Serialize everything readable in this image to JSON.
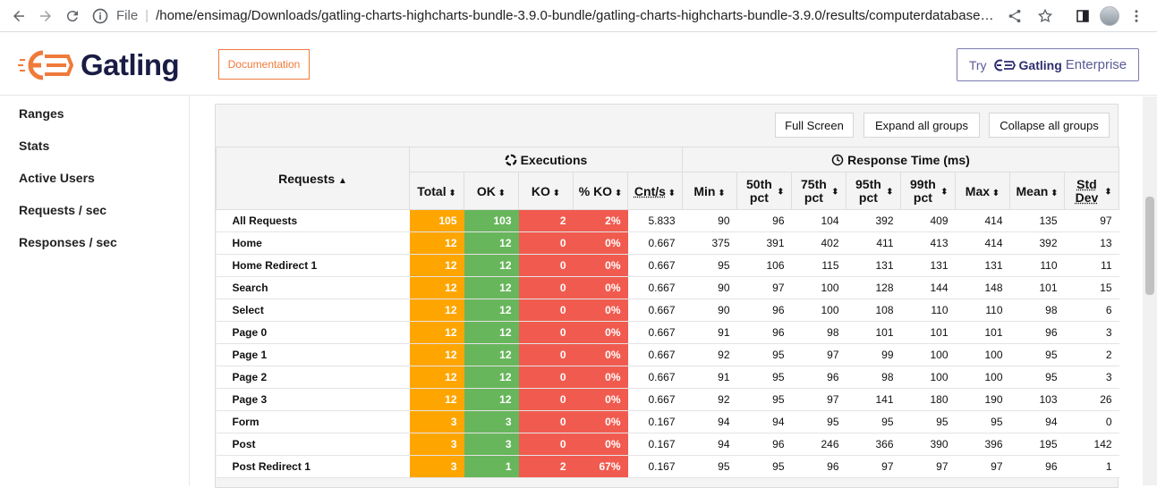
{
  "browser": {
    "file_label": "File",
    "url": "/home/ensimag/Downloads/gatling-charts-highcharts-bundle-3.9.0-bundle/gatling-charts-highcharts-bundle-3.9.0/results/computerdatabasesimul…"
  },
  "header": {
    "logo_text": "Gatling",
    "doc_label": "Documentation",
    "ent_try": "Try",
    "ent_brand": "Gatling",
    "ent_product": "Enterprise",
    "accent": "#f07a3a"
  },
  "sidebar": {
    "items": [
      "Ranges",
      "Stats",
      "Active Users",
      "Requests / sec",
      "Responses / sec"
    ]
  },
  "toolbar": {
    "full_screen": "Full Screen",
    "expand": "Expand all groups",
    "collapse": "Collapse all groups"
  },
  "table": {
    "requests_header": "Requests",
    "executions_header": "Executions",
    "response_header": "Response Time (ms)",
    "columns": [
      "Total",
      "OK",
      "KO",
      "% KO",
      "Cnt/s",
      "Min",
      "50th pct",
      "75th pct",
      "95th pct",
      "99th pct",
      "Max",
      "Mean",
      "Std Dev"
    ],
    "rows": [
      [
        "All Requests",
        "105",
        "103",
        "2",
        "2%",
        "5.833",
        "90",
        "96",
        "104",
        "392",
        "409",
        "414",
        "135",
        "97"
      ],
      [
        "Home",
        "12",
        "12",
        "0",
        "0%",
        "0.667",
        "375",
        "391",
        "402",
        "411",
        "413",
        "414",
        "392",
        "13"
      ],
      [
        "Home Redirect 1",
        "12",
        "12",
        "0",
        "0%",
        "0.667",
        "95",
        "106",
        "115",
        "131",
        "131",
        "131",
        "110",
        "11"
      ],
      [
        "Search",
        "12",
        "12",
        "0",
        "0%",
        "0.667",
        "90",
        "97",
        "100",
        "128",
        "144",
        "148",
        "101",
        "15"
      ],
      [
        "Select",
        "12",
        "12",
        "0",
        "0%",
        "0.667",
        "90",
        "96",
        "100",
        "108",
        "110",
        "110",
        "98",
        "6"
      ],
      [
        "Page 0",
        "12",
        "12",
        "0",
        "0%",
        "0.667",
        "91",
        "96",
        "98",
        "101",
        "101",
        "101",
        "96",
        "3"
      ],
      [
        "Page 1",
        "12",
        "12",
        "0",
        "0%",
        "0.667",
        "92",
        "95",
        "97",
        "99",
        "100",
        "100",
        "95",
        "2"
      ],
      [
        "Page 2",
        "12",
        "12",
        "0",
        "0%",
        "0.667",
        "91",
        "95",
        "96",
        "98",
        "100",
        "100",
        "95",
        "3"
      ],
      [
        "Page 3",
        "12",
        "12",
        "0",
        "0%",
        "0.667",
        "92",
        "95",
        "97",
        "141",
        "180",
        "190",
        "103",
        "26"
      ],
      [
        "Form",
        "3",
        "3",
        "0",
        "0%",
        "0.167",
        "94",
        "94",
        "95",
        "95",
        "95",
        "95",
        "94",
        "0"
      ],
      [
        "Post",
        "3",
        "3",
        "0",
        "0%",
        "0.167",
        "94",
        "96",
        "246",
        "366",
        "390",
        "396",
        "195",
        "142"
      ],
      [
        "Post Redirect 1",
        "3",
        "1",
        "2",
        "67%",
        "0.167",
        "95",
        "95",
        "96",
        "97",
        "97",
        "97",
        "96",
        "1"
      ]
    ],
    "colors": {
      "total": "#ffa500",
      "ok": "#68b65c",
      "ko": "#f15b4f"
    }
  }
}
